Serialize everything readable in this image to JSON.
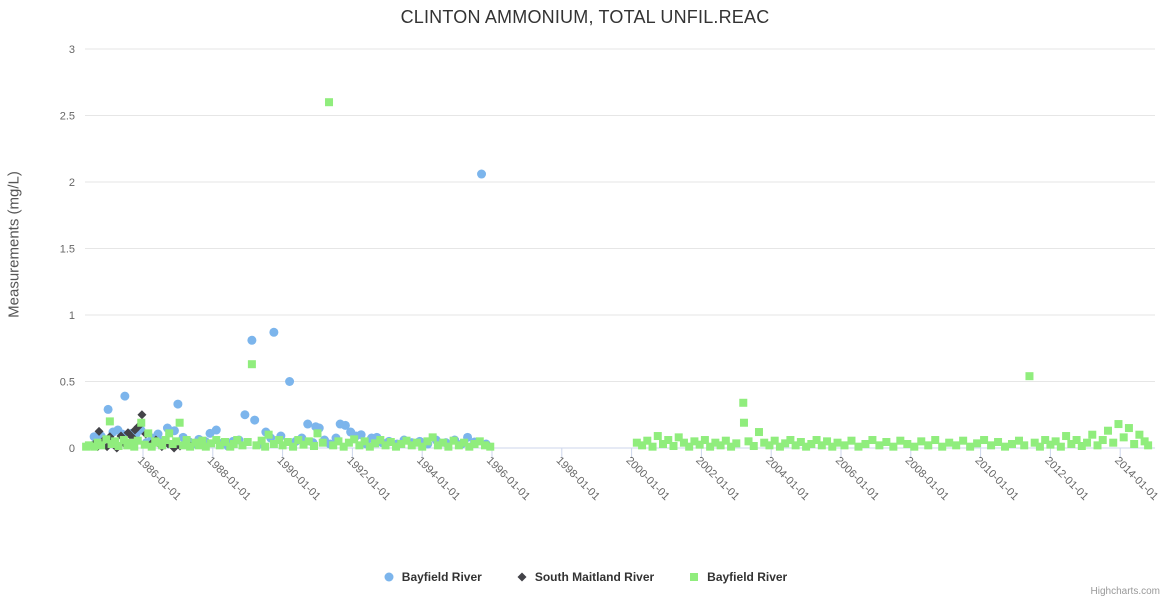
{
  "title": "CLINTON AMMONIUM, TOTAL UNFIL.REAC",
  "credits": "Highcharts.com",
  "colors": {
    "series_blue": "#7cb5ec",
    "series_dark": "#434348",
    "series_green": "#90ed7d",
    "grid_line": "#e6e6e6",
    "axis_line": "#ccd6eb",
    "tick_text": "#666666",
    "title_text": "#333333"
  },
  "chart_data": {
    "type": "scatter",
    "title": "CLINTON AMMONIUM, TOTAL UNFIL.REAC",
    "xlabel": "",
    "ylabel": "Measurements (mg/L)",
    "ylim": [
      0,
      3
    ],
    "xlim": [
      1984.3,
      2015.05
    ],
    "grid": "horizontal-only",
    "legend_position": "bottom-center",
    "y_ticks": [
      {
        "value": 0,
        "label": "0"
      },
      {
        "value": 0.5,
        "label": "0.5"
      },
      {
        "value": 1,
        "label": "1"
      },
      {
        "value": 1.5,
        "label": "1.5"
      },
      {
        "value": 2,
        "label": "2"
      },
      {
        "value": 2.5,
        "label": "2.5"
      },
      {
        "value": 3,
        "label": "3"
      }
    ],
    "x_ticks": [
      {
        "year": 1986,
        "label": "1986-01-01"
      },
      {
        "year": 1988,
        "label": "1988-01-01"
      },
      {
        "year": 1990,
        "label": "1990-01-01"
      },
      {
        "year": 1992,
        "label": "1992-01-01"
      },
      {
        "year": 1994,
        "label": "1994-01-01"
      },
      {
        "year": 1996,
        "label": "1996-01-01"
      },
      {
        "year": 1998,
        "label": "1998-01-01"
      },
      {
        "year": 2000,
        "label": "2000-01-01"
      },
      {
        "year": 2002,
        "label": "2002-01-01"
      },
      {
        "year": 2004,
        "label": "2004-01-01"
      },
      {
        "year": 2006,
        "label": "2006-01-01"
      },
      {
        "year": 2008,
        "label": "2008-01-01"
      },
      {
        "year": 2010,
        "label": "2010-01-01"
      },
      {
        "year": 2012,
        "label": "2012-01-01"
      },
      {
        "year": 2014,
        "label": "2014-01-01"
      }
    ],
    "series": [
      {
        "name": "Bayfield River",
        "marker": "circle",
        "color": "#7cb5ec",
        "points": [
          [
            1984.57,
            0.02
          ],
          [
            1984.6,
            0.085
          ],
          [
            1984.8,
            0.09
          ],
          [
            1985.0,
            0.29
          ],
          [
            1985.14,
            0.12
          ],
          [
            1985.28,
            0.135
          ],
          [
            1985.4,
            0.105
          ],
          [
            1985.48,
            0.39
          ],
          [
            1985.66,
            0.11
          ],
          [
            1985.8,
            0.105
          ],
          [
            1985.94,
            0.135
          ],
          [
            1986.1,
            0.04
          ],
          [
            1986.26,
            0.075
          ],
          [
            1986.43,
            0.105
          ],
          [
            1986.57,
            0.05
          ],
          [
            1986.7,
            0.15
          ],
          [
            1986.9,
            0.13
          ],
          [
            1987.0,
            0.33
          ],
          [
            1987.15,
            0.08
          ],
          [
            1987.3,
            0.05
          ],
          [
            1987.46,
            0.03
          ],
          [
            1987.6,
            0.065
          ],
          [
            1987.78,
            0.05
          ],
          [
            1987.92,
            0.11
          ],
          [
            1988.1,
            0.135
          ],
          [
            1988.26,
            0.035
          ],
          [
            1988.43,
            0.015
          ],
          [
            1988.58,
            0.05
          ],
          [
            1988.75,
            0.06
          ],
          [
            1988.92,
            0.25
          ],
          [
            1989.12,
            0.81
          ],
          [
            1989.2,
            0.21
          ],
          [
            1989.38,
            0.03
          ],
          [
            1989.52,
            0.12
          ],
          [
            1989.66,
            0.075
          ],
          [
            1989.75,
            0.87
          ],
          [
            1989.95,
            0.09
          ],
          [
            1990.2,
            0.5
          ],
          [
            1990.38,
            0.05
          ],
          [
            1990.55,
            0.075
          ],
          [
            1990.72,
            0.18
          ],
          [
            1990.87,
            0.04
          ],
          [
            1990.95,
            0.16
          ],
          [
            1991.05,
            0.15
          ],
          [
            1991.2,
            0.06
          ],
          [
            1991.36,
            0.03
          ],
          [
            1991.53,
            0.075
          ],
          [
            1991.65,
            0.18
          ],
          [
            1991.8,
            0.17
          ],
          [
            1991.95,
            0.12
          ],
          [
            1992.1,
            0.09
          ],
          [
            1992.25,
            0.1
          ],
          [
            1992.4,
            0.03
          ],
          [
            1992.55,
            0.075
          ],
          [
            1992.7,
            0.08
          ],
          [
            1992.85,
            0.04
          ],
          [
            1993.05,
            0.05
          ],
          [
            1993.28,
            0.03
          ],
          [
            1993.48,
            0.06
          ],
          [
            1993.7,
            0.04
          ],
          [
            1993.93,
            0.05
          ],
          [
            1994.16,
            0.03
          ],
          [
            1994.4,
            0.06
          ],
          [
            1994.68,
            0.04
          ],
          [
            1994.93,
            0.06
          ],
          [
            1995.13,
            0.03
          ],
          [
            1995.3,
            0.08
          ],
          [
            1995.5,
            0.045
          ],
          [
            1995.7,
            2.06
          ],
          [
            1995.83,
            0.03
          ]
        ]
      },
      {
        "name": "South Maitland River",
        "marker": "diamond",
        "color": "#434348",
        "points": [
          [
            1984.6,
            0.03
          ],
          [
            1984.7,
            0.01
          ],
          [
            1984.74,
            0.125
          ],
          [
            1984.88,
            0.06
          ],
          [
            1984.97,
            0.01
          ],
          [
            1985.05,
            0.085
          ],
          [
            1985.17,
            0.03
          ],
          [
            1985.25,
            0.0
          ],
          [
            1985.37,
            0.09
          ],
          [
            1985.48,
            0.03
          ],
          [
            1985.57,
            0.115
          ],
          [
            1985.68,
            0.085
          ],
          [
            1985.77,
            0.135
          ],
          [
            1985.86,
            0.16
          ],
          [
            1985.97,
            0.25
          ],
          [
            1986.08,
            0.105
          ],
          [
            1986.23,
            0.03
          ],
          [
            1986.37,
            0.06
          ],
          [
            1986.54,
            0.01
          ],
          [
            1986.72,
            0.03
          ],
          [
            1986.89,
            0.0
          ],
          [
            1987.06,
            0.015
          ],
          [
            1987.3,
            0.03
          ]
        ]
      },
      {
        "name": "Bayfield River",
        "marker": "square",
        "color": "#90ed7d",
        "points": [
          [
            1984.37,
            0.01
          ],
          [
            1984.45,
            0.02
          ],
          [
            1984.6,
            0.01
          ],
          [
            1984.7,
            0.04
          ],
          [
            1984.8,
            0.02
          ],
          [
            1984.95,
            0.065
          ],
          [
            1985.05,
            0.2
          ],
          [
            1985.1,
            0.03
          ],
          [
            1985.2,
            0.05
          ],
          [
            1985.3,
            0.015
          ],
          [
            1985.45,
            0.06
          ],
          [
            1985.55,
            0.02
          ],
          [
            1985.65,
            0.04
          ],
          [
            1985.75,
            0.01
          ],
          [
            1985.85,
            0.055
          ],
          [
            1985.95,
            0.19
          ],
          [
            1986.05,
            0.025
          ],
          [
            1986.15,
            0.11
          ],
          [
            1986.25,
            0.01
          ],
          [
            1986.35,
            0.05
          ],
          [
            1986.45,
            0.04
          ],
          [
            1986.55,
            0.02
          ],
          [
            1986.65,
            0.06
          ],
          [
            1986.75,
            0.11
          ],
          [
            1986.85,
            0.03
          ],
          [
            1986.95,
            0.05
          ],
          [
            1987.05,
            0.19
          ],
          [
            1987.15,
            0.02
          ],
          [
            1987.25,
            0.06
          ],
          [
            1987.35,
            0.01
          ],
          [
            1987.5,
            0.04
          ],
          [
            1987.6,
            0.02
          ],
          [
            1987.7,
            0.055
          ],
          [
            1987.8,
            0.01
          ],
          [
            1987.95,
            0.035
          ],
          [
            1988.1,
            0.06
          ],
          [
            1988.2,
            0.02
          ],
          [
            1988.35,
            0.045
          ],
          [
            1988.5,
            0.01
          ],
          [
            1988.6,
            0.03
          ],
          [
            1988.7,
            0.06
          ],
          [
            1988.85,
            0.02
          ],
          [
            1989.0,
            0.045
          ],
          [
            1989.12,
            0.63
          ],
          [
            1989.25,
            0.02
          ],
          [
            1989.4,
            0.055
          ],
          [
            1989.5,
            0.01
          ],
          [
            1989.6,
            0.1
          ],
          [
            1989.75,
            0.03
          ],
          [
            1989.9,
            0.06
          ],
          [
            1990.0,
            0.02
          ],
          [
            1990.15,
            0.045
          ],
          [
            1990.3,
            0.01
          ],
          [
            1990.45,
            0.06
          ],
          [
            1990.6,
            0.025
          ],
          [
            1990.75,
            0.05
          ],
          [
            1990.9,
            0.015
          ],
          [
            1991.0,
            0.11
          ],
          [
            1991.15,
            0.04
          ],
          [
            1991.33,
            2.6
          ],
          [
            1991.45,
            0.02
          ],
          [
            1991.6,
            0.05
          ],
          [
            1991.75,
            0.01
          ],
          [
            1991.9,
            0.04
          ],
          [
            1992.05,
            0.065
          ],
          [
            1992.2,
            0.02
          ],
          [
            1992.35,
            0.05
          ],
          [
            1992.5,
            0.01
          ],
          [
            1992.65,
            0.035
          ],
          [
            1992.8,
            0.06
          ],
          [
            1992.95,
            0.02
          ],
          [
            1993.1,
            0.045
          ],
          [
            1993.25,
            0.01
          ],
          [
            1993.4,
            0.03
          ],
          [
            1993.55,
            0.055
          ],
          [
            1993.7,
            0.02
          ],
          [
            1993.85,
            0.04
          ],
          [
            1994.0,
            0.01
          ],
          [
            1994.15,
            0.05
          ],
          [
            1994.3,
            0.08
          ],
          [
            1994.45,
            0.02
          ],
          [
            1994.6,
            0.04
          ],
          [
            1994.75,
            0.01
          ],
          [
            1994.9,
            0.055
          ],
          [
            1995.05,
            0.02
          ],
          [
            1995.2,
            0.04
          ],
          [
            1995.35,
            0.01
          ],
          [
            1995.5,
            0.03
          ],
          [
            1995.65,
            0.05
          ],
          [
            1995.8,
            0.02
          ],
          [
            1995.95,
            0.01
          ],
          [
            2000.15,
            0.04
          ],
          [
            2000.3,
            0.02
          ],
          [
            2000.45,
            0.055
          ],
          [
            2000.6,
            0.01
          ],
          [
            2000.75,
            0.09
          ],
          [
            2000.9,
            0.03
          ],
          [
            2001.05,
            0.06
          ],
          [
            2001.2,
            0.015
          ],
          [
            2001.35,
            0.08
          ],
          [
            2001.5,
            0.04
          ],
          [
            2001.65,
            0.01
          ],
          [
            2001.8,
            0.05
          ],
          [
            2001.95,
            0.025
          ],
          [
            2002.1,
            0.06
          ],
          [
            2002.25,
            0.01
          ],
          [
            2002.4,
            0.04
          ],
          [
            2002.55,
            0.02
          ],
          [
            2002.7,
            0.055
          ],
          [
            2002.85,
            0.01
          ],
          [
            2003.0,
            0.035
          ],
          [
            2003.2,
            0.34
          ],
          [
            2003.22,
            0.19
          ],
          [
            2003.35,
            0.05
          ],
          [
            2003.5,
            0.015
          ],
          [
            2003.65,
            0.12
          ],
          [
            2003.8,
            0.04
          ],
          [
            2003.95,
            0.02
          ],
          [
            2004.1,
            0.055
          ],
          [
            2004.25,
            0.01
          ],
          [
            2004.4,
            0.035
          ],
          [
            2004.55,
            0.06
          ],
          [
            2004.7,
            0.02
          ],
          [
            2004.85,
            0.045
          ],
          [
            2005.0,
            0.01
          ],
          [
            2005.15,
            0.03
          ],
          [
            2005.3,
            0.06
          ],
          [
            2005.45,
            0.02
          ],
          [
            2005.6,
            0.05
          ],
          [
            2005.75,
            0.01
          ],
          [
            2005.9,
            0.04
          ],
          [
            2006.1,
            0.02
          ],
          [
            2006.3,
            0.055
          ],
          [
            2006.5,
            0.01
          ],
          [
            2006.7,
            0.03
          ],
          [
            2006.9,
            0.06
          ],
          [
            2007.1,
            0.02
          ],
          [
            2007.3,
            0.045
          ],
          [
            2007.5,
            0.01
          ],
          [
            2007.7,
            0.055
          ],
          [
            2007.9,
            0.03
          ],
          [
            2008.1,
            0.01
          ],
          [
            2008.3,
            0.05
          ],
          [
            2008.5,
            0.02
          ],
          [
            2008.7,
            0.06
          ],
          [
            2008.9,
            0.01
          ],
          [
            2009.1,
            0.04
          ],
          [
            2009.3,
            0.02
          ],
          [
            2009.5,
            0.055
          ],
          [
            2009.7,
            0.01
          ],
          [
            2009.9,
            0.035
          ],
          [
            2010.1,
            0.06
          ],
          [
            2010.3,
            0.02
          ],
          [
            2010.5,
            0.045
          ],
          [
            2010.7,
            0.01
          ],
          [
            2010.9,
            0.03
          ],
          [
            2011.1,
            0.055
          ],
          [
            2011.25,
            0.02
          ],
          [
            2011.4,
            0.54
          ],
          [
            2011.55,
            0.04
          ],
          [
            2011.7,
            0.01
          ],
          [
            2011.85,
            0.06
          ],
          [
            2012.0,
            0.025
          ],
          [
            2012.15,
            0.05
          ],
          [
            2012.3,
            0.01
          ],
          [
            2012.45,
            0.09
          ],
          [
            2012.6,
            0.03
          ],
          [
            2012.75,
            0.06
          ],
          [
            2012.9,
            0.015
          ],
          [
            2013.05,
            0.04
          ],
          [
            2013.2,
            0.1
          ],
          [
            2013.35,
            0.02
          ],
          [
            2013.5,
            0.06
          ],
          [
            2013.65,
            0.13
          ],
          [
            2013.8,
            0.04
          ],
          [
            2013.95,
            0.18
          ],
          [
            2014.1,
            0.08
          ],
          [
            2014.25,
            0.15
          ],
          [
            2014.4,
            0.03
          ],
          [
            2014.55,
            0.1
          ],
          [
            2014.7,
            0.05
          ],
          [
            2014.8,
            0.02
          ]
        ]
      }
    ]
  }
}
